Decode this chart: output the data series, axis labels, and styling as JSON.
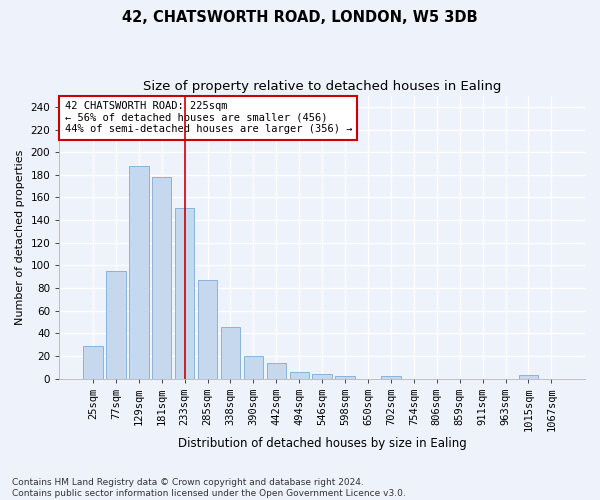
{
  "title1": "42, CHATSWORTH ROAD, LONDON, W5 3DB",
  "title2": "Size of property relative to detached houses in Ealing",
  "xlabel": "Distribution of detached houses by size in Ealing",
  "ylabel": "Number of detached properties",
  "categories": [
    "25sqm",
    "77sqm",
    "129sqm",
    "181sqm",
    "233sqm",
    "285sqm",
    "338sqm",
    "390sqm",
    "442sqm",
    "494sqm",
    "546sqm",
    "598sqm",
    "650sqm",
    "702sqm",
    "754sqm",
    "806sqm",
    "859sqm",
    "911sqm",
    "963sqm",
    "1015sqm",
    "1067sqm"
  ],
  "values": [
    29,
    95,
    188,
    178,
    151,
    87,
    46,
    20,
    14,
    6,
    4,
    2,
    0,
    2,
    0,
    0,
    0,
    0,
    0,
    3,
    0
  ],
  "bar_color": "#c5d8ee",
  "bar_edge_color": "#7badd4",
  "vline_index": 4,
  "vline_color": "#cc0000",
  "annotation_text": "42 CHATSWORTH ROAD: 225sqm\n← 56% of detached houses are smaller (456)\n44% of semi-detached houses are larger (356) →",
  "annotation_box_color": "white",
  "annotation_box_edge_color": "#cc0000",
  "ylim": [
    0,
    250
  ],
  "yticks": [
    0,
    20,
    40,
    60,
    80,
    100,
    120,
    140,
    160,
    180,
    200,
    220,
    240
  ],
  "footnote": "Contains HM Land Registry data © Crown copyright and database right 2024.\nContains public sector information licensed under the Open Government Licence v3.0.",
  "title1_fontsize": 10.5,
  "title2_fontsize": 9.5,
  "xlabel_fontsize": 8.5,
  "ylabel_fontsize": 8,
  "tick_fontsize": 7.5,
  "annotation_fontsize": 7.5,
  "footnote_fontsize": 6.5,
  "background_color": "#eef2fb",
  "grid_color": "#ffffff"
}
